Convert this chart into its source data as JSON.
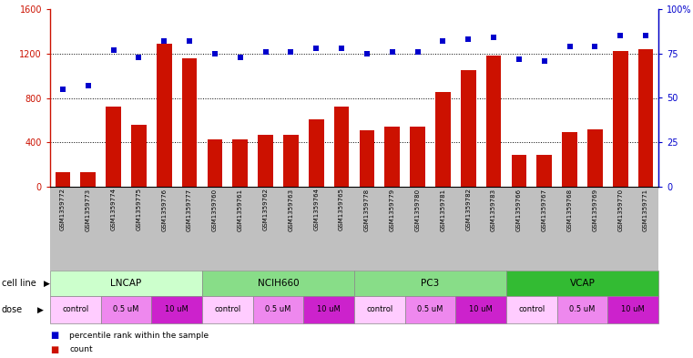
{
  "samples": [
    "GSM1359772",
    "GSM1359773",
    "GSM1359774",
    "GSM1359775",
    "GSM1359776",
    "GSM1359777",
    "GSM1359760",
    "GSM1359761",
    "GSM1359762",
    "GSM1359763",
    "GSM1359764",
    "GSM1359765",
    "GSM1359778",
    "GSM1359779",
    "GSM1359780",
    "GSM1359781",
    "GSM1359782",
    "GSM1359783",
    "GSM1359766",
    "GSM1359767",
    "GSM1359768",
    "GSM1359769",
    "GSM1359770",
    "GSM1359771"
  ],
  "counts": [
    130,
    130,
    720,
    560,
    1290,
    1160,
    430,
    430,
    470,
    470,
    610,
    720,
    510,
    540,
    540,
    850,
    1050,
    1180,
    290,
    290,
    490,
    520,
    1220,
    1240
  ],
  "percentile_ranks": [
    55,
    57,
    77,
    73,
    82,
    82,
    75,
    73,
    76,
    76,
    78,
    78,
    75,
    76,
    76,
    82,
    83,
    84,
    72,
    71,
    79,
    79,
    85,
    85
  ],
  "cell_lines": [
    {
      "name": "LNCAP",
      "start": 0,
      "end": 6,
      "color": "#ccffcc"
    },
    {
      "name": "NCIH660",
      "start": 6,
      "end": 12,
      "color": "#88dd88"
    },
    {
      "name": "PC3",
      "start": 12,
      "end": 18,
      "color": "#88dd88"
    },
    {
      "name": "VCAP",
      "start": 18,
      "end": 24,
      "color": "#33bb33"
    }
  ],
  "doses": [
    {
      "label": "control",
      "start": 0,
      "end": 2,
      "color": "#ffccff"
    },
    {
      "label": "0.5 uM",
      "start": 2,
      "end": 4,
      "color": "#ee88ee"
    },
    {
      "label": "10 uM",
      "start": 4,
      "end": 6,
      "color": "#cc22cc"
    },
    {
      "label": "control",
      "start": 6,
      "end": 8,
      "color": "#ffccff"
    },
    {
      "label": "0.5 uM",
      "start": 8,
      "end": 10,
      "color": "#ee88ee"
    },
    {
      "label": "10 uM",
      "start": 10,
      "end": 12,
      "color": "#cc22cc"
    },
    {
      "label": "control",
      "start": 12,
      "end": 14,
      "color": "#ffccff"
    },
    {
      "label": "0.5 uM",
      "start": 14,
      "end": 16,
      "color": "#ee88ee"
    },
    {
      "label": "10 uM",
      "start": 16,
      "end": 18,
      "color": "#cc22cc"
    },
    {
      "label": "control",
      "start": 18,
      "end": 20,
      "color": "#ffccff"
    },
    {
      "label": "0.5 uM",
      "start": 20,
      "end": 22,
      "color": "#ee88ee"
    },
    {
      "label": "10 uM",
      "start": 22,
      "end": 24,
      "color": "#cc22cc"
    }
  ],
  "bar_color": "#cc1100",
  "dot_color": "#0000cc",
  "xtick_bg_color": "#c0c0c0",
  "ylim_left": [
    0,
    1600
  ],
  "ylim_right": [
    0,
    100
  ],
  "yticks_left": [
    0,
    400,
    800,
    1200,
    1600
  ],
  "yticks_right": [
    0,
    25,
    50,
    75,
    100
  ],
  "grid_yticks": [
    400,
    800,
    1200
  ],
  "background_color": "#ffffff"
}
